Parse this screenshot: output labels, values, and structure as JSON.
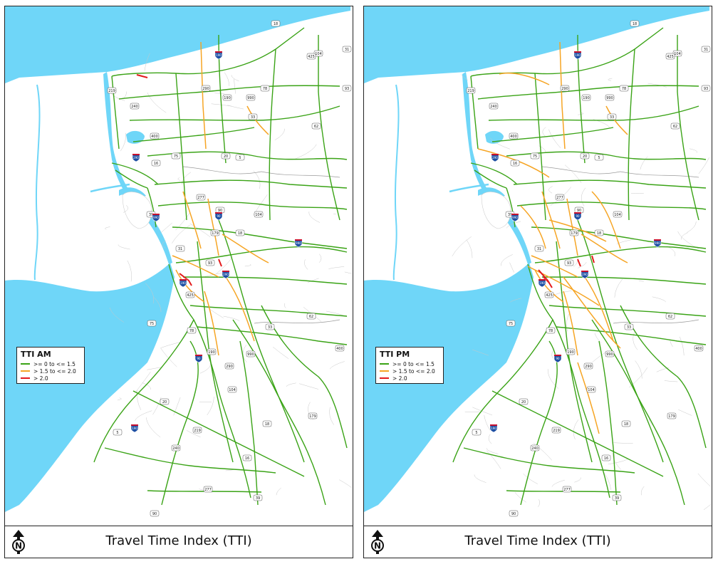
{
  "colors": {
    "water": "#6fd6f8",
    "land": "#ffffff",
    "green": "#3aa316",
    "orange": "#f6a524",
    "red": "#e31a1c",
    "minor_road": "#c8c8c8"
  },
  "panels": [
    {
      "id": "am",
      "legend": {
        "title": "TTI AM",
        "items": [
          {
            "label": ">= 0 to <= 1.5",
            "color": "#3aa316"
          },
          {
            "label": "> 1.5 to <= 2.0",
            "color": "#f6a524"
          },
          {
            "label": "> 2.0",
            "color": "#e31a1c"
          }
        ]
      },
      "footer_title": "Travel Time Index (TTI)"
    },
    {
      "id": "pm",
      "legend": {
        "title": "TTI PM",
        "items": [
          {
            "label": ">= 0 to <= 1.5",
            "color": "#3aa316"
          },
          {
            "label": "> 1.5 to <= 2.0",
            "color": "#f6a524"
          },
          {
            "label": "> 2.0",
            "color": "#e31a1c"
          }
        ]
      },
      "footer_title": "Travel Time Index (TTI)"
    }
  ],
  "route_shields": [
    "18",
    "104",
    "31",
    "93",
    "425",
    "78",
    "190",
    "290",
    "990",
    "33",
    "62",
    "400",
    "75",
    "20",
    "5",
    "240",
    "219",
    "16",
    "39",
    "277",
    "90",
    "179"
  ],
  "interstate_shields": [
    "190",
    "290",
    "990",
    "90"
  ]
}
